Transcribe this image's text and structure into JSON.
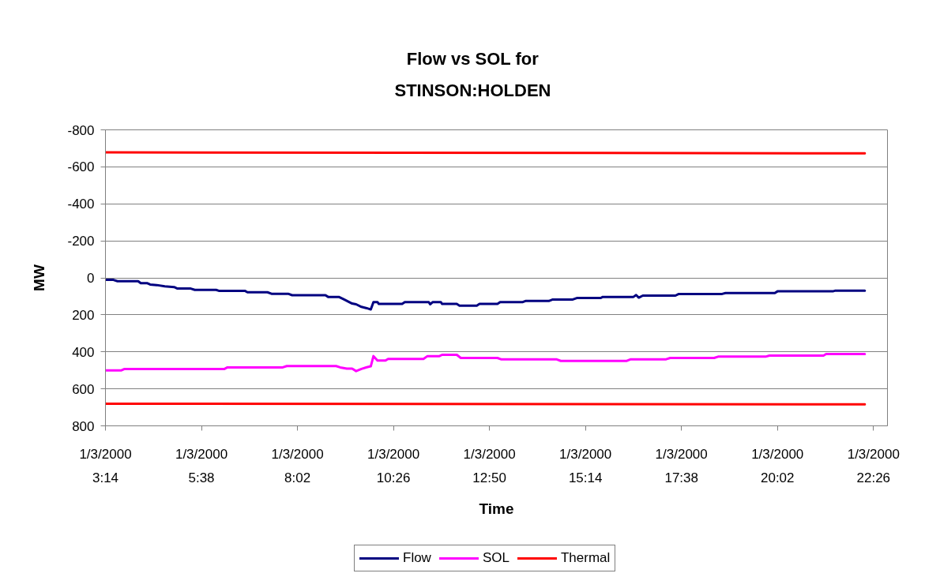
{
  "chart_data": {
    "type": "line",
    "title": "Flow vs SOL for STINSON:HOLDEN",
    "xlabel": "Time",
    "ylabel": "MW",
    "xlim": [
      "2000-01-03T03:14",
      "2000-01-03T22:47"
    ],
    "xticks": [
      {
        "value": "2000-01-03T03:14",
        "label": "1/3/2000 3:14"
      },
      {
        "value": "2000-01-03T05:38",
        "label": "1/3/2000 5:38"
      },
      {
        "value": "2000-01-03T08:02",
        "label": "1/3/2000 8:02"
      },
      {
        "value": "2000-01-03T10:26",
        "label": "1/3/2000 10:26"
      },
      {
        "value": "2000-01-03T12:50",
        "label": "1/3/2000 12:50"
      },
      {
        "value": "2000-01-03T15:14",
        "label": "1/3/2000 15:14"
      },
      {
        "value": "2000-01-03T17:38",
        "label": "1/3/2000 17:38"
      },
      {
        "value": "2000-01-03T20:02",
        "label": "1/3/2000 20:02"
      },
      {
        "value": "2000-01-03T22:26",
        "label": "1/3/2000 22:26"
      }
    ],
    "ylim": [
      800,
      -800
    ],
    "yticks": [
      -800,
      -600,
      -400,
      -200,
      0,
      200,
      400,
      600,
      800
    ],
    "grid": "y",
    "legend": "bottom",
    "line_style": "solid",
    "series": [
      {
        "name": "Flow",
        "color": "#000080",
        "x": [
          "2000-01-03T03:15",
          "2000-01-03T03:26",
          "2000-01-03T03:32",
          "2000-01-03T04:03",
          "2000-01-03T04:07",
          "2000-01-03T04:17",
          "2000-01-03T04:21",
          "2000-01-03T04:31",
          "2000-01-03T04:43",
          "2000-01-03T04:57",
          "2000-01-03T05:02",
          "2000-01-03T05:22",
          "2000-01-03T05:28",
          "2000-01-03T06:00",
          "2000-01-03T06:04",
          "2000-01-03T06:43",
          "2000-01-03T06:47",
          "2000-01-03T07:17",
          "2000-01-03T07:23",
          "2000-01-03T07:48",
          "2000-01-03T07:54",
          "2000-01-03T08:44",
          "2000-01-03T08:48",
          "2000-01-03T09:04",
          "2000-01-03T09:12",
          "2000-01-03T09:24",
          "2000-01-03T09:30",
          "2000-01-03T09:38",
          "2000-01-03T09:46",
          "2000-01-03T09:52",
          "2000-01-03T09:56",
          "2000-01-03T10:02",
          "2000-01-03T10:04",
          "2000-01-03T10:39",
          "2000-01-03T10:43",
          "2000-01-03T11:19",
          "2000-01-03T11:21",
          "2000-01-03T11:25",
          "2000-01-03T11:37",
          "2000-01-03T11:39",
          "2000-01-03T12:01",
          "2000-01-03T12:05",
          "2000-01-03T12:31",
          "2000-01-03T12:35",
          "2000-01-03T13:02",
          "2000-01-03T13:06",
          "2000-01-03T13:40",
          "2000-01-03T13:44",
          "2000-01-03T14:19",
          "2000-01-03T14:25",
          "2000-01-03T14:55",
          "2000-01-03T15:01",
          "2000-01-03T15:37",
          "2000-01-03T15:40",
          "2000-01-03T16:26",
          "2000-01-03T16:30",
          "2000-01-03T16:34",
          "2000-01-03T16:40",
          "2000-01-03T17:29",
          "2000-01-03T17:34",
          "2000-01-03T18:39",
          "2000-01-03T18:44",
          "2000-01-03T19:58",
          "2000-01-03T20:02",
          "2000-01-03T21:25",
          "2000-01-03T21:29",
          "2000-01-03T22:13"
        ],
        "values": [
          11,
          11,
          18,
          18,
          29,
          29,
          36,
          39,
          46,
          50,
          58,
          58,
          65,
          65,
          70,
          70,
          78,
          78,
          86,
          86,
          94,
          94,
          103,
          103,
          117,
          139,
          143,
          157,
          164,
          171,
          131,
          131,
          141,
          141,
          131,
          131,
          143,
          131,
          131,
          141,
          141,
          150,
          150,
          141,
          141,
          131,
          131,
          125,
          125,
          117,
          117,
          109,
          109,
          103,
          103,
          93,
          107,
          96,
          96,
          87,
          87,
          82,
          82,
          73,
          73,
          69,
          69
        ]
      },
      {
        "name": "SOL",
        "color": "#ff00ff",
        "x": [
          "2000-01-03T03:15",
          "2000-01-03T03:38",
          "2000-01-03T03:42",
          "2000-01-03T06:12",
          "2000-01-03T06:17",
          "2000-01-03T07:40",
          "2000-01-03T07:46",
          "2000-01-03T09:00",
          "2000-01-03T09:06",
          "2000-01-03T09:16",
          "2000-01-03T09:24",
          "2000-01-03T09:30",
          "2000-01-03T09:38",
          "2000-01-03T09:46",
          "2000-01-03T09:52",
          "2000-01-03T09:56",
          "2000-01-03T10:02",
          "2000-01-03T10:14",
          "2000-01-03T10:18",
          "2000-01-03T11:11",
          "2000-01-03T11:17",
          "2000-01-03T11:35",
          "2000-01-03T11:39",
          "2000-01-03T12:01",
          "2000-01-03T12:07",
          "2000-01-03T13:02",
          "2000-01-03T13:08",
          "2000-01-03T14:31",
          "2000-01-03T14:37",
          "2000-01-03T16:16",
          "2000-01-03T16:22",
          "2000-01-03T17:15",
          "2000-01-03T17:21",
          "2000-01-03T18:27",
          "2000-01-03T18:33",
          "2000-01-03T19:44",
          "2000-01-03T19:50",
          "2000-01-03T21:11",
          "2000-01-03T21:15",
          "2000-01-03T22:13"
        ],
        "values": [
          500,
          500,
          493,
          493,
          484,
          484,
          477,
          477,
          484,
          491,
          491,
          504,
          492,
          483,
          478,
          423,
          447,
          447,
          438,
          438,
          423,
          423,
          416,
          416,
          433,
          433,
          441,
          441,
          449,
          449,
          440,
          440,
          433,
          433,
          426,
          426,
          420,
          420,
          412,
          412
        ]
      },
      {
        "name": "Thermal",
        "color": "#ff0000",
        "x": [
          "2000-01-03T03:15",
          "2000-01-03T22:13"
        ],
        "values": [
          -678,
          -673
        ]
      },
      {
        "color": "#ff0000",
        "x": [
          "2000-01-03T03:15",
          "2000-01-03T22:13"
        ],
        "values": [
          680,
          684
        ]
      }
    ]
  }
}
